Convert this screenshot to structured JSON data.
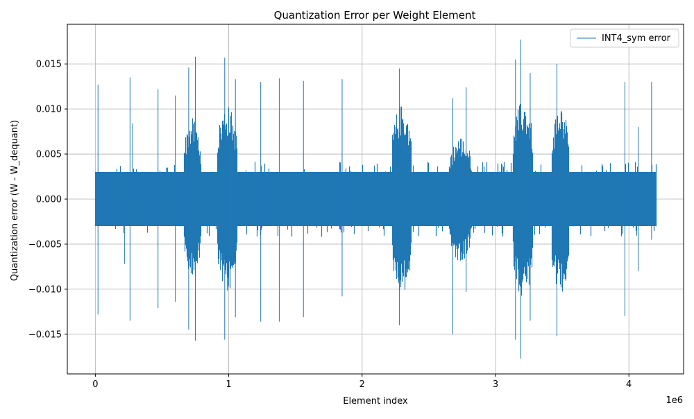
{
  "chart_data": {
    "type": "line",
    "title": "Quantization Error per Weight Element",
    "xlabel": "Element index",
    "ylabel": "Quantization error (W - W_dequant)",
    "x_offset_label": "1e6",
    "xlim": [
      -0.21,
      4.41
    ],
    "ylim": [
      -0.0194,
      0.0194
    ],
    "x_ticks": [
      0,
      1,
      2,
      3,
      4
    ],
    "x_tick_labels": [
      "0",
      "1",
      "2",
      "3",
      "4"
    ],
    "y_ticks": [
      -0.015,
      -0.01,
      -0.005,
      0.0,
      0.005,
      0.01,
      0.015
    ],
    "y_tick_labels": [
      "−0.015",
      "−0.010",
      "−0.005",
      "0.000",
      "0.005",
      "0.010",
      "0.015"
    ],
    "grid": true,
    "legend_position": "top-right",
    "series": [
      {
        "name": "INT4_sym error",
        "color": "#1f77b4",
        "x_range": [
          0,
          4.2
        ],
        "base_band": [
          -0.003,
          0.003
        ],
        "dense_regions": [
          {
            "x": [
              0.66,
              0.79
            ],
            "amplitude": 0.009
          },
          {
            "x": [
              0.91,
              1.06
            ],
            "amplitude": 0.0105
          },
          {
            "x": [
              2.22,
              2.37
            ],
            "amplitude": 0.0105
          },
          {
            "x": [
              2.65,
              2.82
            ],
            "amplitude": 0.007
          },
          {
            "x": [
              3.13,
              3.28
            ],
            "amplitude": 0.011
          },
          {
            "x": [
              3.42,
              3.55
            ],
            "amplitude": 0.0105
          }
        ],
        "spikes": [
          {
            "x": 0.02,
            "y": 0.0127
          },
          {
            "x": 0.02,
            "y": -0.0128
          },
          {
            "x": 0.26,
            "y": 0.0135
          },
          {
            "x": 0.26,
            "y": -0.0135
          },
          {
            "x": 0.28,
            "y": 0.0084
          },
          {
            "x": 0.22,
            "y": -0.0072
          },
          {
            "x": 0.47,
            "y": 0.0122
          },
          {
            "x": 0.47,
            "y": -0.0121
          },
          {
            "x": 0.6,
            "y": 0.0115
          },
          {
            "x": 0.6,
            "y": -0.0114
          },
          {
            "x": 0.7,
            "y": 0.0146
          },
          {
            "x": 0.7,
            "y": -0.0145
          },
          {
            "x": 0.75,
            "y": 0.0158
          },
          {
            "x": 0.75,
            "y": -0.0157
          },
          {
            "x": 0.97,
            "y": 0.0157
          },
          {
            "x": 0.97,
            "y": -0.0156
          },
          {
            "x": 1.05,
            "y": 0.0133
          },
          {
            "x": 1.05,
            "y": -0.0131
          },
          {
            "x": 1.24,
            "y": 0.013
          },
          {
            "x": 1.24,
            "y": -0.0136
          },
          {
            "x": 1.38,
            "y": 0.0134
          },
          {
            "x": 1.38,
            "y": -0.0136
          },
          {
            "x": 1.56,
            "y": 0.0131
          },
          {
            "x": 1.56,
            "y": -0.0131
          },
          {
            "x": 1.85,
            "y": 0.0133
          },
          {
            "x": 1.85,
            "y": -0.0108
          },
          {
            "x": 2.28,
            "y": 0.0145
          },
          {
            "x": 2.28,
            "y": -0.014
          },
          {
            "x": 2.68,
            "y": 0.0112
          },
          {
            "x": 2.68,
            "y": -0.015
          },
          {
            "x": 2.78,
            "y": 0.0124
          },
          {
            "x": 2.78,
            "y": -0.0103
          },
          {
            "x": 3.15,
            "y": 0.0155
          },
          {
            "x": 3.15,
            "y": -0.0156
          },
          {
            "x": 3.19,
            "y": 0.0177
          },
          {
            "x": 3.19,
            "y": -0.0177
          },
          {
            "x": 3.26,
            "y": 0.014
          },
          {
            "x": 3.26,
            "y": -0.0135
          },
          {
            "x": 3.46,
            "y": 0.015
          },
          {
            "x": 3.46,
            "y": -0.0152
          },
          {
            "x": 3.97,
            "y": 0.013
          },
          {
            "x": 3.97,
            "y": -0.013
          },
          {
            "x": 4.07,
            "y": 0.008
          },
          {
            "x": 4.07,
            "y": -0.008
          },
          {
            "x": 4.17,
            "y": 0.013
          },
          {
            "x": 4.17,
            "y": -0.0045
          }
        ]
      }
    ]
  }
}
